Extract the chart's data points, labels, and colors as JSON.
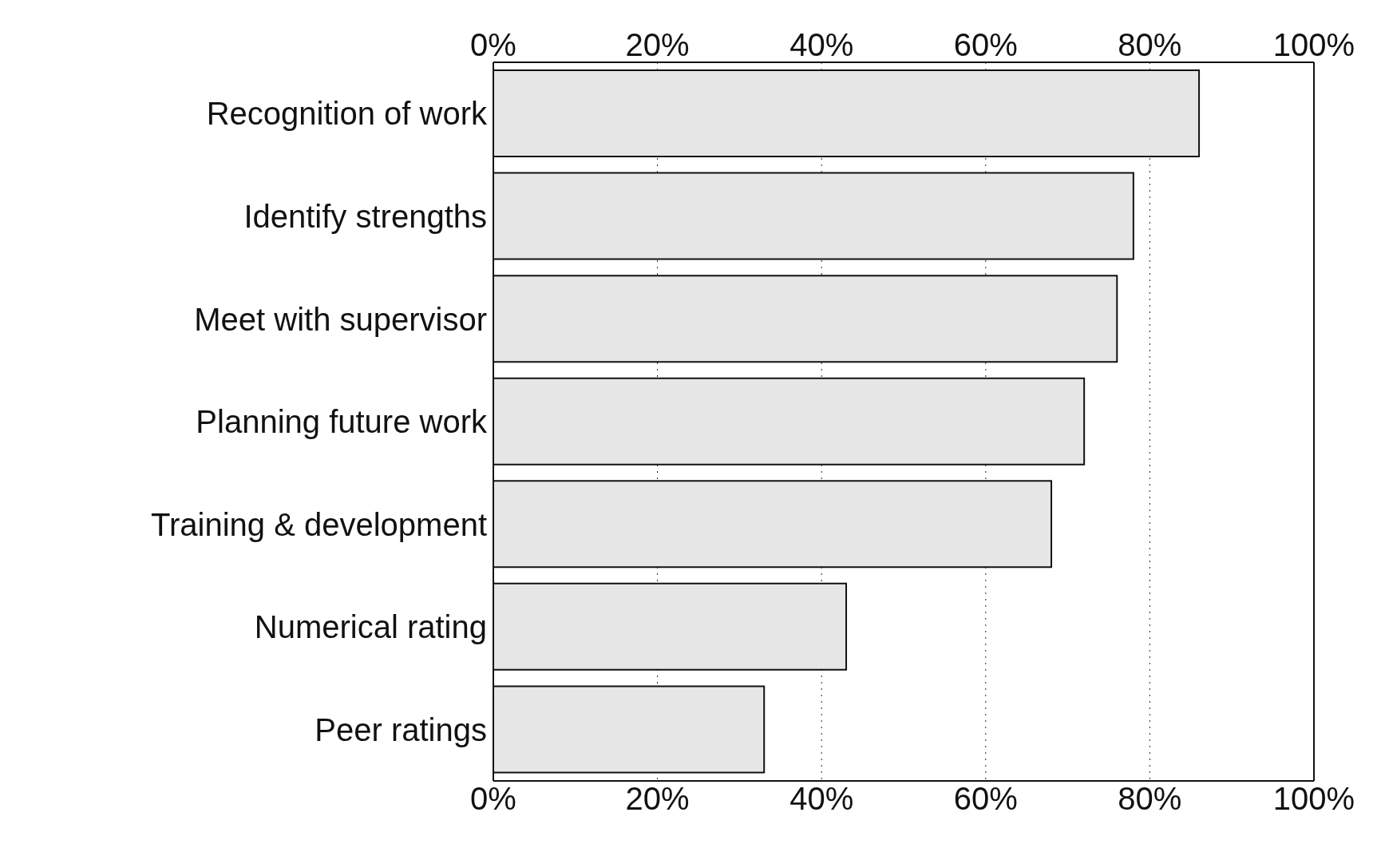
{
  "chart_data": {
    "type": "bar",
    "orientation": "horizontal",
    "categories": [
      "Recognition of work",
      "Identify strengths",
      "Meet with supervisor",
      "Planning future work",
      "Training & development",
      "Numerical rating",
      "Peer ratings"
    ],
    "values": [
      86,
      78,
      76,
      72,
      68,
      43,
      33
    ],
    "color": "#e6e6e6",
    "xlim": [
      0,
      100
    ],
    "xticks": [
      {
        "value": 0,
        "label": "0%"
      },
      {
        "value": 20,
        "label": "20%"
      },
      {
        "value": 40,
        "label": "40%"
      },
      {
        "value": 60,
        "label": "60%"
      },
      {
        "value": 80,
        "label": "80%"
      },
      {
        "value": 100,
        "label": "100%"
      }
    ],
    "x2lim": [
      0,
      100
    ],
    "x2ticks": [
      {
        "value": 0,
        "label": "0%"
      },
      {
        "value": 20,
        "label": "20%"
      },
      {
        "value": 40,
        "label": "40%"
      },
      {
        "value": 60,
        "label": "60%"
      },
      {
        "value": 80,
        "label": "80%"
      },
      {
        "value": 100,
        "label": "100%"
      }
    ],
    "grid": "x",
    "legend": false
  }
}
